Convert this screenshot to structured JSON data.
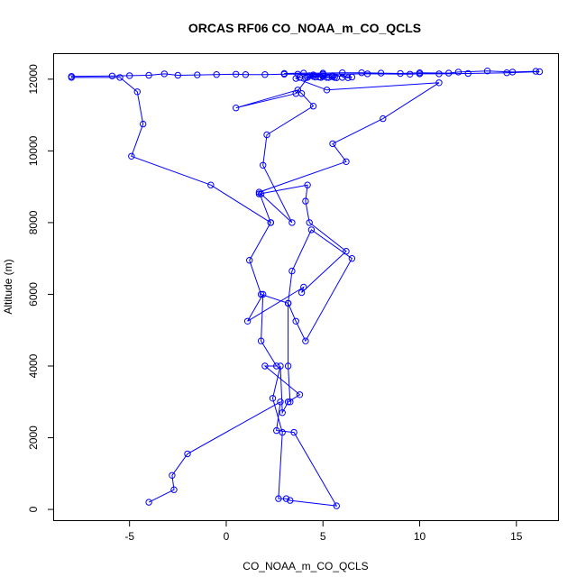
{
  "chart_data": {
    "type": "line",
    "title": "ORCAS RF06 CO_NOAA_m_CO_QCLS",
    "xlabel": "CO_NOAA_m_CO_QCLS",
    "ylabel": "Altitude (m)",
    "xlim": [
      -8.9,
      17.2
    ],
    "ylim": [
      -300,
      12700
    ],
    "xticks": [
      -5,
      0,
      5,
      10,
      15
    ],
    "yticks": [
      0,
      2000,
      4000,
      6000,
      8000,
      10000,
      12000
    ],
    "grid": false,
    "color": "#0000ff",
    "marker": "open-circle",
    "series": [
      {
        "x": [
          -4.0,
          -2.7,
          -2.8,
          -2.0,
          2.8,
          2.6,
          3.5,
          5.7,
          3.3,
          3.1,
          2.7,
          2.9,
          2.4,
          2.8,
          2.9,
          3.2,
          3.8,
          2.0,
          2.6,
          1.8,
          1.9,
          1.1,
          4.0,
          3.9,
          6.2,
          4.3,
          4.1,
          4.2,
          1.7,
          1.8,
          3.4,
          1.9,
          2.1,
          4.5,
          3.9,
          3.7,
          0.5,
          3.6,
          4.3,
          5.6,
          5.2,
          4.9
        ],
        "y": [
          200,
          550,
          950,
          1550,
          3000,
          2200,
          2150,
          100,
          250,
          300,
          300,
          2150,
          3100,
          4000,
          2700,
          3000,
          3200,
          4000,
          4000,
          4700,
          6000,
          5250,
          6200,
          6050,
          7200,
          8000,
          8600,
          9050,
          8800,
          8800,
          8000,
          9600,
          10450,
          11250,
          11600,
          11700,
          11200,
          11600,
          12100,
          12050,
          12050,
          12050
        ]
      },
      {
        "x": [
          4.2,
          4.5,
          4.8,
          5.0,
          5.3,
          5.5,
          5.7,
          5.0,
          4.6,
          4.1,
          3.8,
          3.6,
          5.2,
          11.0,
          8.1,
          5.5,
          6.2,
          1.7,
          2.3,
          1.2,
          1.8,
          3.2,
          3.6,
          4.1,
          6.5,
          4.4,
          3.4,
          3.2,
          3.2,
          3.3
        ],
        "y": [
          12050,
          12080,
          12060,
          12100,
          12050,
          12070,
          12040,
          12080,
          12060,
          12040,
          12050,
          12020,
          11700,
          11900,
          10900,
          10200,
          9700,
          8850,
          8000,
          6950,
          6000,
          5750,
          5250,
          4700,
          7000,
          7800,
          6650,
          5750,
          4000,
          3000
        ]
      },
      {
        "x": [
          6.0,
          6.3,
          6.5,
          5.5,
          4.5,
          3.7,
          3.0,
          4.0,
          5.0,
          6.0,
          7.0,
          8.0,
          9.0,
          10.0,
          11.5,
          12.0,
          13.5,
          14.8,
          16.0,
          16.2,
          14.5,
          12.5,
          11.0,
          10.0,
          9.5,
          7.3,
          5.0,
          3.0,
          2.0,
          1.0,
          0.5,
          -0.5,
          -1.5,
          -2.5,
          -3.2,
          -4.0,
          -5.0,
          -5.9,
          -8.0,
          -8.0,
          -5.5,
          -4.6,
          -4.3,
          -4.9,
          -0.8,
          2.3
        ],
        "y": [
          12050,
          12040,
          12060,
          12100,
          12120,
          12140,
          12160,
          12170,
          12170,
          12180,
          12180,
          12170,
          12160,
          12180,
          12170,
          12200,
          12230,
          12200,
          12220,
          12210,
          12180,
          12160,
          12150,
          12150,
          12140,
          12150,
          12140,
          12140,
          12130,
          12130,
          12140,
          12130,
          12120,
          12110,
          12150,
          12110,
          12100,
          12090,
          12080,
          12050,
          12050,
          11650,
          10750,
          9850,
          9050,
          8000
        ]
      }
    ]
  }
}
